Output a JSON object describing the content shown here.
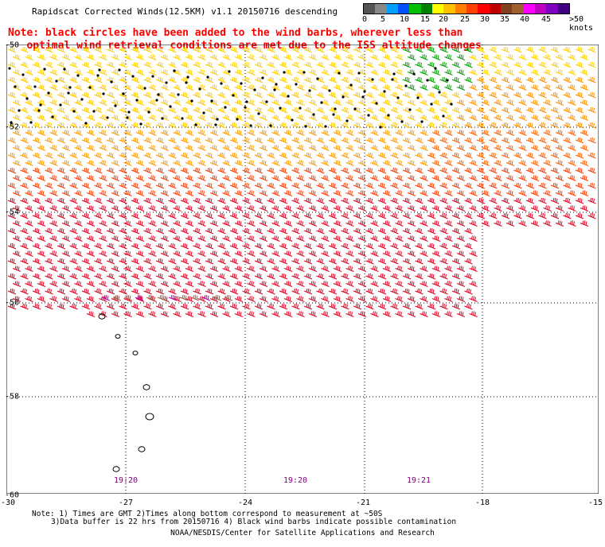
{
  "title": "Rapidscat Corrected Winds(12.5KM) v1.1 20150716 descending",
  "note_lines": [
    "Note: black circles have been added to the wind barbs, wherever less than",
    "   optimal wind retrieval conditions are met due to the ISS altitude changes"
  ],
  "colorbar": {
    "colors": [
      "#555555",
      "#888888",
      "#00a0ff",
      "#0050ff",
      "#00c000",
      "#008000",
      "#ffff00",
      "#ffc000",
      "#ff8000",
      "#ff4000",
      "#ff0000",
      "#c00000",
      "#804020",
      "#a06030",
      "#ff00ff",
      "#c000c0",
      "#8000c0",
      "#400080"
    ],
    "labels": [
      "0",
      "5",
      "10",
      "15",
      "20",
      "25",
      "30",
      "35",
      "40",
      "45",
      ">50 knots"
    ]
  },
  "axes": {
    "y_labels": [
      "-50",
      "-52",
      "-54",
      "-56",
      "-58",
      "-60"
    ],
    "x_labels": [
      "-30",
      "-27",
      "-24",
      "-21",
      "-18",
      "-15"
    ]
  },
  "time_labels": [
    "19:20",
    "19:20",
    "19:21"
  ],
  "footer": {
    "line1": "Note: 1) Times are GMT 2)Times along bottom correspond to measurement at ~50S",
    "line2": "3)Data buffer is 22 hrs from 20150716 4) Black wind barbs indicate possible contamination",
    "line3": "NOAA/NESDIS/Center for Satellite Applications and Research"
  }
}
